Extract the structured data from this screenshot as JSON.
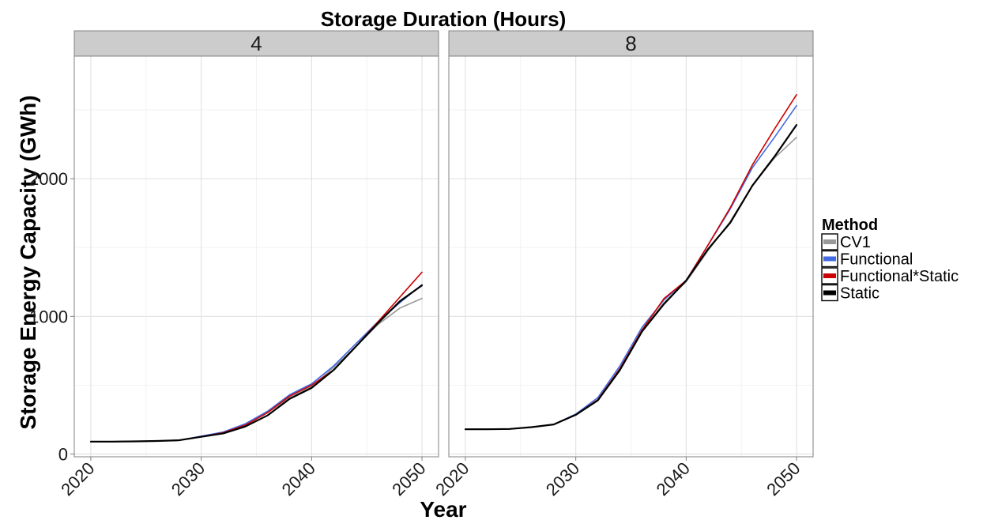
{
  "chart_data": {
    "type": "line",
    "title": "Storage Duration (Hours)",
    "xlabel": "Year",
    "ylabel": "Storage Energy Capacity (GWh)",
    "xlim": [
      2018.5,
      2051.5
    ],
    "ylim": [
      -20,
      2890
    ],
    "x_ticks": [
      2020,
      2030,
      2040,
      2050
    ],
    "y_ticks": [
      0,
      1000,
      2000
    ],
    "grid": true,
    "legend": {
      "title": "Method",
      "placement": "right"
    },
    "colors": {
      "CV1": "#999999",
      "Functional": "#4169e1",
      "Functional*Static": "#cc0000",
      "Static": "#000000"
    },
    "panels": [
      {
        "label": "4",
        "series": [
          {
            "name": "CV1",
            "x": [
              2020,
              2022,
              2024,
              2026,
              2028,
              2030,
              2032,
              2034,
              2036,
              2038,
              2040,
              2042,
              2044,
              2046,
              2048,
              2050
            ],
            "y": [
              90,
              90,
              92,
              95,
              100,
              125,
              150,
              210,
              300,
              410,
              490,
              630,
              780,
              940,
              1060,
              1130
            ]
          },
          {
            "name": "Functional",
            "x": [
              2020,
              2022,
              2024,
              2026,
              2028,
              2030,
              2032,
              2034,
              2036,
              2038,
              2040,
              2042,
              2044,
              2046,
              2048,
              2050
            ],
            "y": [
              90,
              90,
              92,
              95,
              100,
              130,
              160,
              220,
              310,
              430,
              510,
              640,
              800,
              960,
              1100,
              1230
            ]
          },
          {
            "name": "Functional*Static",
            "x": [
              2020,
              2022,
              2024,
              2026,
              2028,
              2030,
              2032,
              2034,
              2036,
              2038,
              2040,
              2042,
              2044,
              2046,
              2048,
              2050
            ],
            "y": [
              90,
              90,
              92,
              95,
              100,
              125,
              155,
              210,
              300,
              420,
              500,
              610,
              780,
              960,
              1140,
              1320
            ]
          },
          {
            "name": "Static",
            "x": [
              2020,
              2022,
              2024,
              2026,
              2028,
              2030,
              2032,
              2034,
              2036,
              2038,
              2040,
              2042,
              2044,
              2046,
              2048,
              2050
            ],
            "y": [
              90,
              90,
              92,
              95,
              100,
              125,
              150,
              200,
              280,
              400,
              480,
              610,
              780,
              950,
              1110,
              1225
            ]
          }
        ]
      },
      {
        "label": "8",
        "series": [
          {
            "name": "CV1",
            "x": [
              2020,
              2022,
              2024,
              2026,
              2028,
              2030,
              2032,
              2034,
              2036,
              2038,
              2040,
              2042,
              2044,
              2046,
              2048,
              2050
            ],
            "y": [
              180,
              180,
              182,
              195,
              215,
              285,
              390,
              620,
              900,
              1100,
              1250,
              1480,
              1690,
              1950,
              2150,
              2300
            ]
          },
          {
            "name": "Functional",
            "x": [
              2020,
              2022,
              2024,
              2026,
              2028,
              2030,
              2032,
              2034,
              2036,
              2038,
              2040,
              2042,
              2044,
              2046,
              2048,
              2050
            ],
            "y": [
              180,
              180,
              182,
              195,
              215,
              290,
              410,
              640,
              920,
              1120,
              1260,
              1520,
              1780,
              2080,
              2300,
              2530
            ]
          },
          {
            "name": "Functional*Static",
            "x": [
              2020,
              2022,
              2024,
              2026,
              2028,
              2030,
              2032,
              2034,
              2036,
              2038,
              2040,
              2042,
              2044,
              2046,
              2048,
              2050
            ],
            "y": [
              180,
              180,
              182,
              195,
              215,
              285,
              395,
              620,
              900,
              1130,
              1260,
              1520,
              1790,
              2100,
              2360,
              2610
            ]
          },
          {
            "name": "Static",
            "x": [
              2020,
              2022,
              2024,
              2026,
              2028,
              2030,
              2032,
              2034,
              2036,
              2038,
              2040,
              2042,
              2044,
              2046,
              2048,
              2050
            ],
            "y": [
              180,
              180,
              182,
              195,
              215,
              285,
              390,
              610,
              890,
              1090,
              1260,
              1490,
              1680,
              1950,
              2160,
              2390
            ]
          }
        ]
      }
    ]
  }
}
